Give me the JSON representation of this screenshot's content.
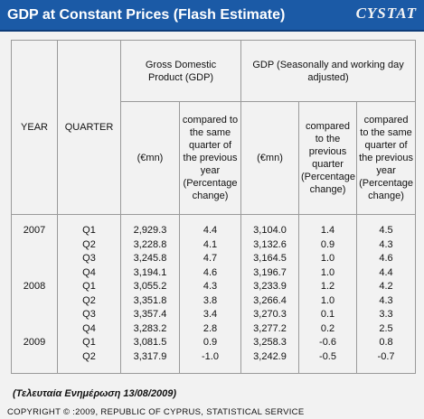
{
  "header": {
    "title": "GDP at Constant Prices (Flash Estimate)",
    "logo": "CYSTAT"
  },
  "table": {
    "headers": {
      "year": "YEAR",
      "quarter": "QUARTER",
      "gdp_group": "Gross Domestic Product (GDP)",
      "sa_group": "GDP (Seasonally and working day adjusted)",
      "gdp_mn": "(€mn)",
      "gdp_yoy": "compared to the same quarter of the previous year (Percentage change)",
      "sa_mn": "(€mn)",
      "sa_qoq": "compared to the previous quarter (Percentage change)",
      "sa_yoy": "compared to the same quarter of the previous year (Percentage change)"
    },
    "years": [
      {
        "year": "2007",
        "rows": [
          [
            "Q1",
            "2,929.3",
            "4.4",
            "3,104.0",
            "1.4",
            "4.5"
          ],
          [
            "Q2",
            "3,228.8",
            "4.1",
            "3,132.6",
            "0.9",
            "4.3"
          ],
          [
            "Q3",
            "3,245.8",
            "4.7",
            "3,164.5",
            "1.0",
            "4.6"
          ],
          [
            "Q4",
            "3,194.1",
            "4.6",
            "3,196.7",
            "1.0",
            "4.4"
          ]
        ]
      },
      {
        "year": "2008",
        "rows": [
          [
            "Q1",
            "3,055.2",
            "4.3",
            "3,233.9",
            "1.2",
            "4.2"
          ],
          [
            "Q2",
            "3,351.8",
            "3.8",
            "3,266.4",
            "1.0",
            "4.3"
          ],
          [
            "Q3",
            "3,357.4",
            "3.4",
            "3,270.3",
            "0.1",
            "3.3"
          ],
          [
            "Q4",
            "3,283.2",
            "2.8",
            "3,277.2",
            "0.2",
            "2.5"
          ]
        ]
      },
      {
        "year": "2009",
        "rows": [
          [
            "Q1",
            "3,081.5",
            "0.9",
            "3,258.3",
            "-0.6",
            "0.8"
          ],
          [
            "Q2",
            "3,317.9",
            "-1.0",
            "3,242.9",
            "-0.5",
            "-0.7"
          ]
        ]
      }
    ]
  },
  "footer": {
    "updated": "(Τελευταία Ενημέρωση 13/08/2009)",
    "copyright": "COPYRIGHT © :2009, REPUBLIC OF CYPRUS, STATISTICAL SERVICE"
  }
}
